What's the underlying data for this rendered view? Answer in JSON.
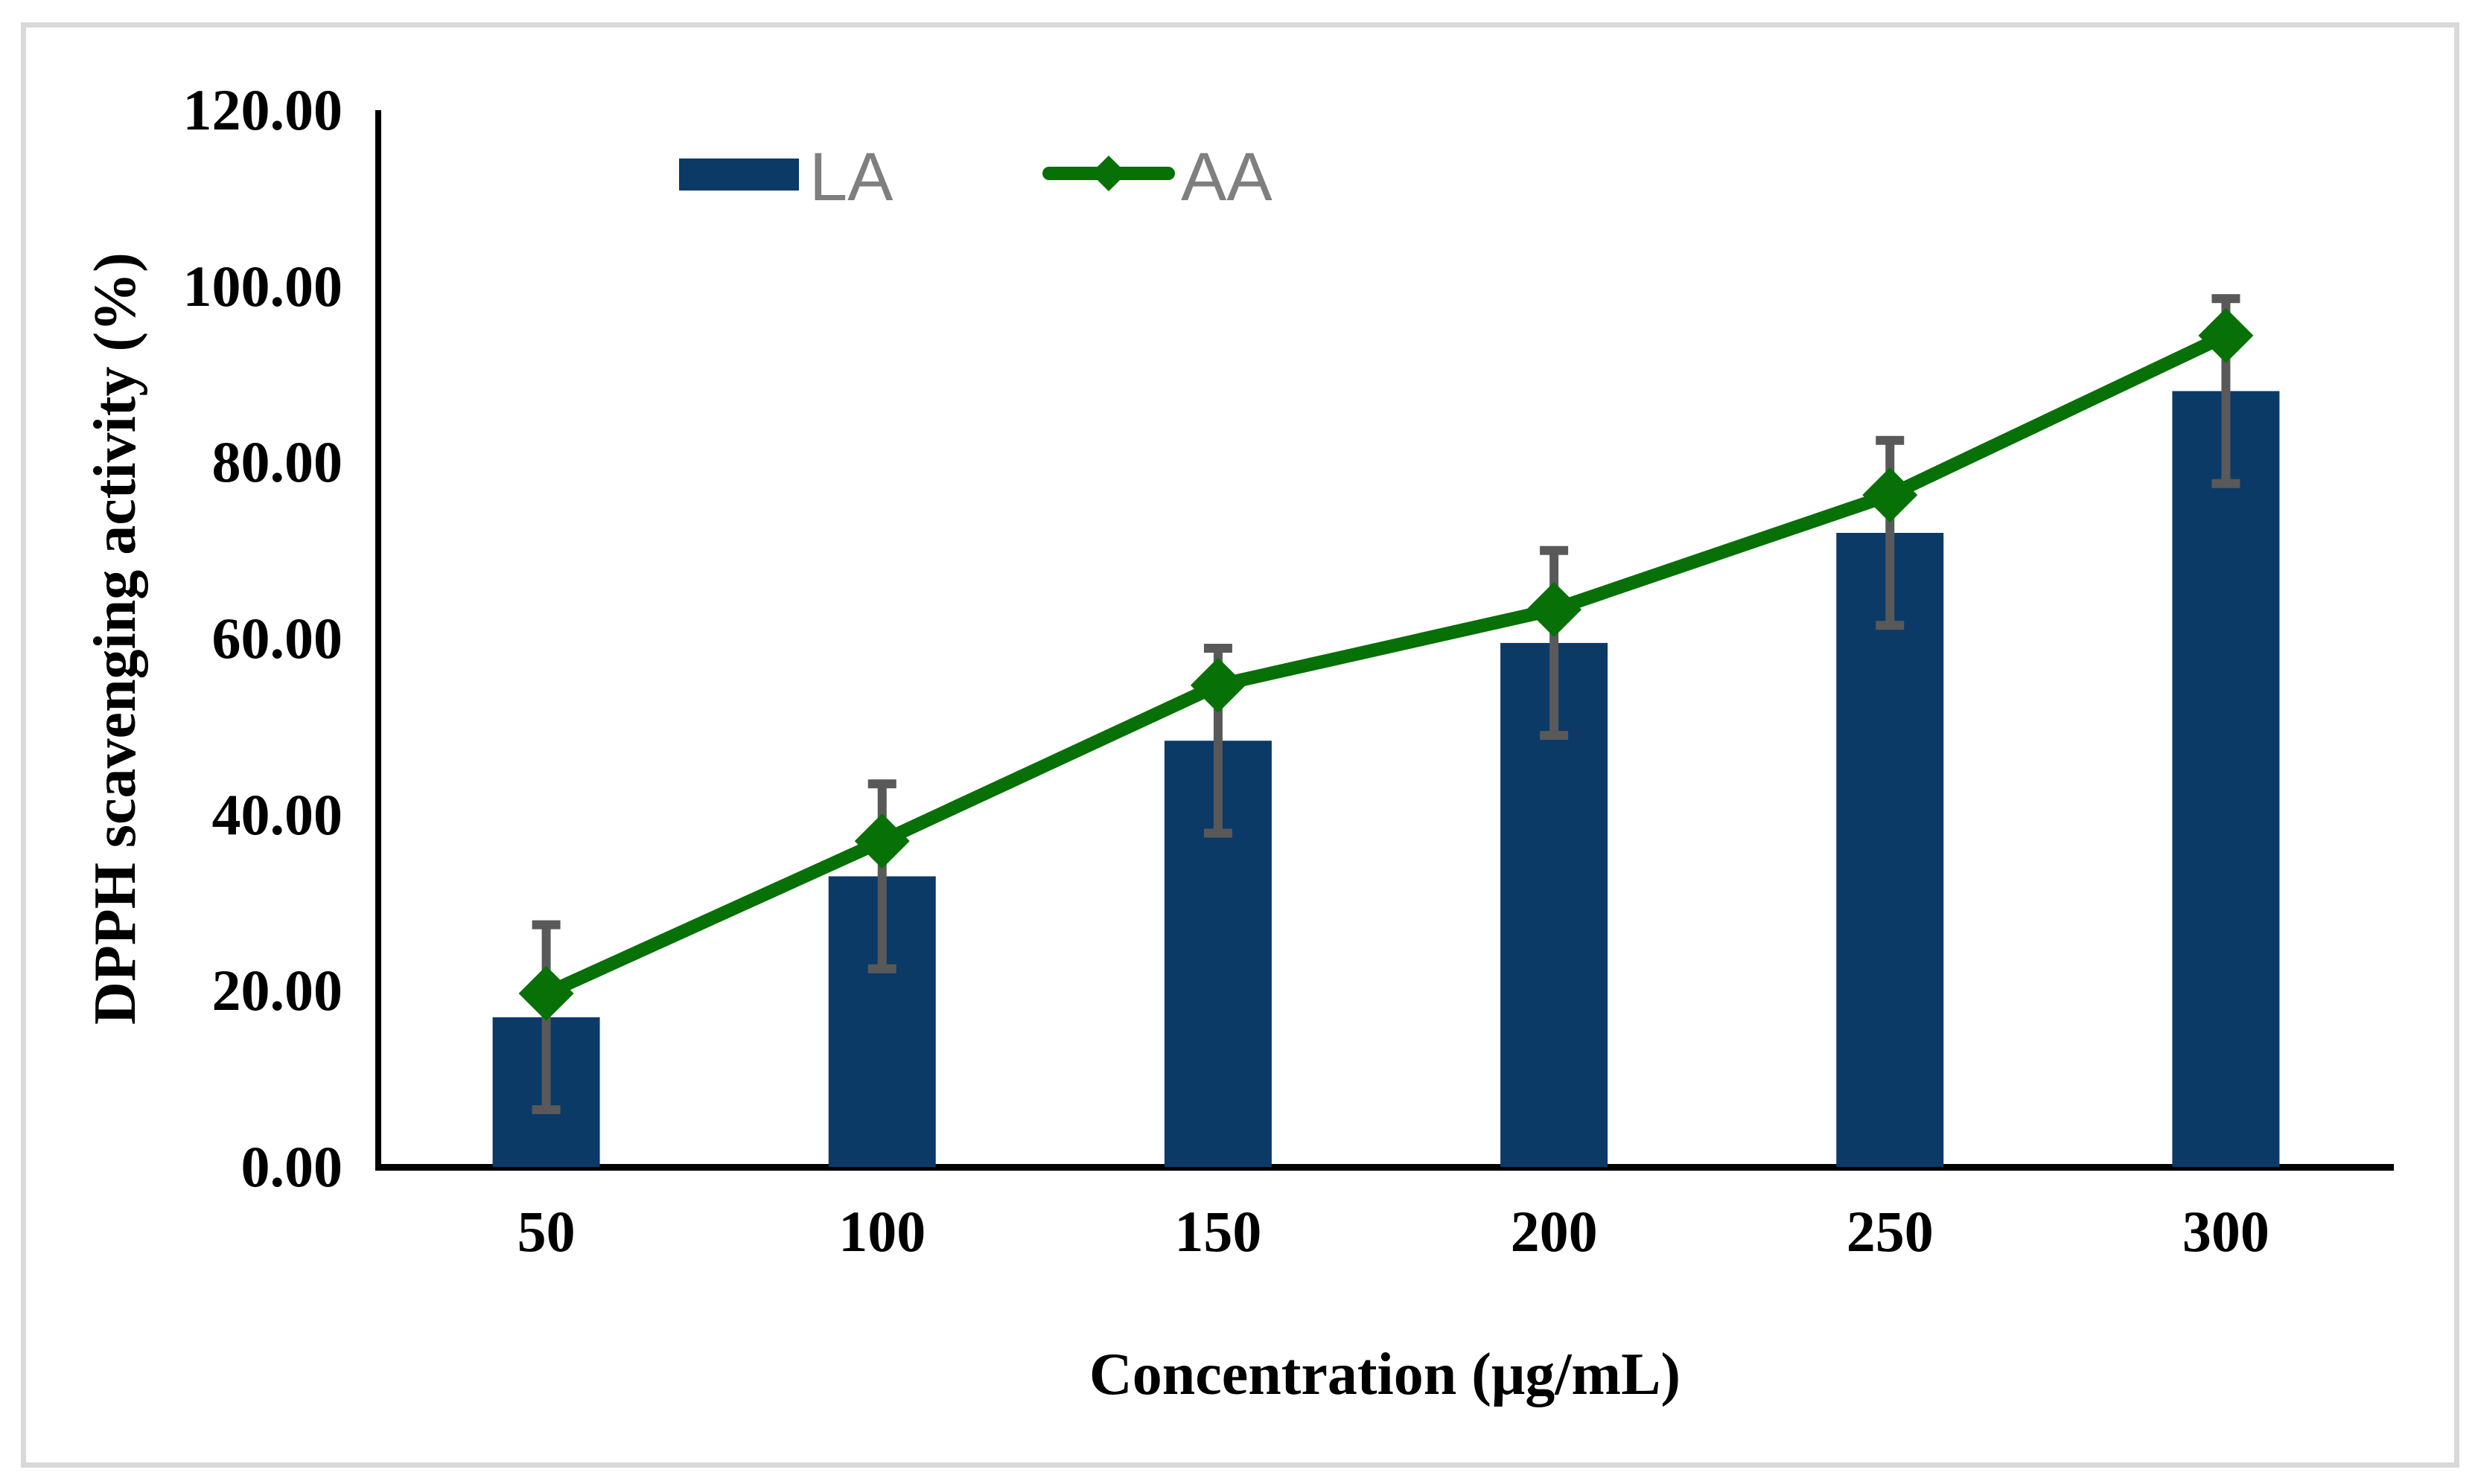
{
  "figure": {
    "background": "#FFFFFF",
    "border_color": "#D9D9D9",
    "axis_color": "#000000"
  },
  "y_axis": {
    "title": "DPPH scavenging activity (%)",
    "tick_labels": [
      "0.00",
      "20.00",
      "40.00",
      "60.00",
      "80.00",
      "100.00",
      "120.00"
    ],
    "min": 0,
    "max": 120,
    "step": 20
  },
  "x_axis": {
    "title": "Concentration (μg/mL)",
    "tick_labels": [
      "50",
      "100",
      "150",
      "200",
      "250",
      "300"
    ]
  },
  "legend": {
    "items": [
      {
        "label": "LA",
        "type": "bar",
        "color": "#0B3A67"
      },
      {
        "label": "AA",
        "type": "line-diamond",
        "color": "#077007"
      }
    ],
    "text_color": "#7F7F7F"
  },
  "chart_data": {
    "type": "bar",
    "subtype": "bar-with-line-overlay",
    "title": "",
    "xlabel": "Concentration (μg/mL)",
    "ylabel": "DPPH scavenging activity (%)",
    "categories": [
      50,
      100,
      150,
      200,
      250,
      300
    ],
    "series": [
      {
        "name": "LA",
        "type": "bar",
        "color": "#0B3A67",
        "values": [
          17.0,
          33.0,
          48.4,
          59.5,
          72.0,
          88.1
        ],
        "error": 10.5,
        "error_color": "#595959"
      },
      {
        "name": "AA",
        "type": "line",
        "marker": "diamond",
        "color": "#077007",
        "values": [
          19.7,
          37.0,
          54.7,
          63.3,
          76.3,
          94.4
        ]
      }
    ],
    "ylim": [
      0,
      120
    ],
    "grid": false,
    "legend_position": "top-inside"
  }
}
